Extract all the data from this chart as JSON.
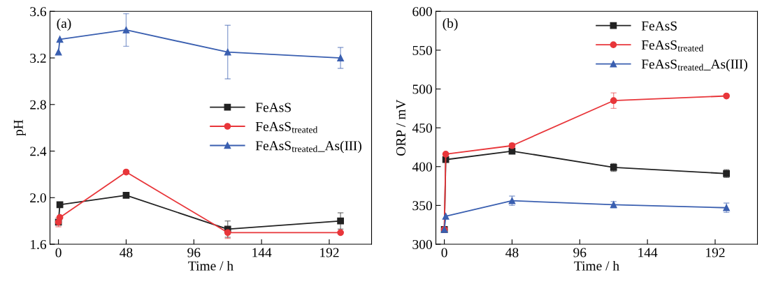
{
  "chart_data": [
    {
      "type": "line",
      "xlabel": "Time / h",
      "ylabel": "pH",
      "annotations": [
        "(a)"
      ],
      "x": [
        0,
        1,
        48,
        120,
        200
      ],
      "xlim": [
        -6,
        222
      ],
      "xticks": [
        0,
        48,
        96,
        144,
        192
      ],
      "ylim": [
        1.6,
        3.6
      ],
      "yticks": [
        1.6,
        {
          "value": 2.0,
          "label": "2.0"
        },
        2.4,
        2.8,
        3.2,
        3.6
      ],
      "grid": false,
      "legend": "center right",
      "series": [
        {
          "name": "FeAsS",
          "color": "#222222",
          "marker": "square",
          "values": [
            1.79,
            1.94,
            2.02,
            1.73,
            1.8
          ],
          "errors": [
            null,
            null,
            null,
            0.07,
            0.07
          ]
        },
        {
          "name": "FeAsS$_{treated}$",
          "color": "#e8363a",
          "marker": "circle",
          "values": [
            1.79,
            1.83,
            2.22,
            1.7,
            1.7
          ],
          "errors": [
            0.04,
            null,
            null,
            0.05,
            null
          ]
        },
        {
          "name": "FeAsS$_{treated}$_As(III)",
          "color": "#3a5fb0",
          "marker": "triangle",
          "values": [
            3.25,
            3.36,
            3.44,
            3.25,
            3.2
          ],
          "errors": [
            null,
            null,
            0.14,
            0.23,
            0.09
          ]
        }
      ]
    },
    {
      "type": "line",
      "xlabel": "Time / h",
      "ylabel": "ORP / mV",
      "annotations": [
        "(b)"
      ],
      "x": [
        0,
        1,
        48,
        120,
        200
      ],
      "xlim": [
        -6,
        222
      ],
      "xticks": [
        0,
        48,
        96,
        144,
        192
      ],
      "ylim": [
        300,
        600
      ],
      "yticks": [
        300,
        350,
        400,
        450,
        500,
        550,
        600
      ],
      "grid": false,
      "legend": "upper right",
      "series": [
        {
          "name": "FeAsS",
          "color": "#222222",
          "marker": "square",
          "values": [
            319,
            409,
            420,
            399,
            391
          ],
          "errors": [
            null,
            null,
            null,
            5,
            5
          ]
        },
        {
          "name": "FeAsS$_{treated}$",
          "color": "#e8363a",
          "marker": "circle",
          "values": [
            319,
            416,
            427,
            485,
            491
          ],
          "errors": [
            null,
            null,
            3,
            10,
            null
          ]
        },
        {
          "name": "FeAsS$_{treated}$_As(III)",
          "color": "#3a5fb0",
          "marker": "triangle",
          "values": [
            319,
            336,
            356,
            351,
            347
          ],
          "errors": [
            null,
            null,
            6,
            4,
            6
          ]
        }
      ]
    }
  ]
}
